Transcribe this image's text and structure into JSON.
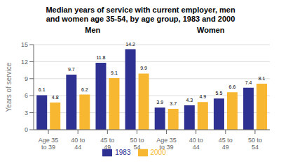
{
  "chart_data": {
    "type": "bar",
    "title": "Median years of service with current employer, men\nand women age 35-54, by age group, 1983 and 2000",
    "ylabel": "Years of service",
    "categories": [
      "Age 35\nto 39",
      "40 to\n44",
      "45 to\n49",
      "50 to\n54",
      "Age 35\nto 39",
      "40 to\n44",
      "45 to\n49",
      "50 to\n54"
    ],
    "annotations": [
      "Men",
      "Women"
    ],
    "series": [
      {
        "name": "1983",
        "color": "#2e3192",
        "values": [
          6.1,
          9.7,
          11.8,
          14.2,
          3.9,
          4.3,
          5.5,
          7.4
        ]
      },
      {
        "name": "2000",
        "color": "#f7b731",
        "values": [
          4.8,
          6.2,
          9.1,
          9.9,
          3.7,
          4.9,
          6.6,
          8.1
        ]
      }
    ],
    "ylim": [
      0,
      15
    ],
    "yticks": [
      0,
      3,
      6,
      9,
      12,
      15
    ],
    "grid": true,
    "legend": "bottom",
    "data_labels": true
  }
}
